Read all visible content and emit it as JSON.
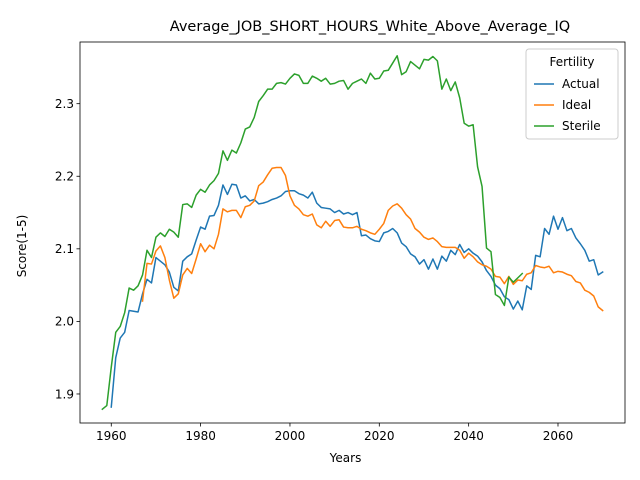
{
  "chart_data": {
    "type": "line",
    "title": "Average_JOB_SHORT_HOURS_White_Above_Average_IQ",
    "xlabel": "Years",
    "ylabel": "Score(1-5)",
    "xlim": [
      1953,
      2075
    ],
    "ylim": [
      1.86,
      2.385
    ],
    "x_ticks": [
      1960,
      1980,
      2000,
      2020,
      2040,
      2060
    ],
    "y_ticks": [
      1.9,
      2.0,
      2.1,
      2.2,
      2.3
    ],
    "x_tick_labels": [
      "1960",
      "1980",
      "2000",
      "2020",
      "2040",
      "2060"
    ],
    "y_tick_labels": [
      "1.9",
      "2.0",
      "2.1",
      "2.2",
      "2.3"
    ],
    "grid": false,
    "legend": {
      "title": "Fertility",
      "position": "top-right"
    },
    "series": [
      {
        "name": "Actual",
        "color": "#1f77b4",
        "x": [
          1960,
          1961,
          1962,
          1963,
          1964,
          1965,
          1966,
          1967,
          1968,
          1969,
          1970,
          1971,
          1972,
          1973,
          1974,
          1975,
          1976,
          1977,
          1978,
          1979,
          1980,
          1981,
          1982,
          1983,
          1984,
          1985,
          1986,
          1987,
          1988,
          1989,
          1990,
          1991,
          1992,
          1993,
          1994,
          1995,
          1996,
          1997,
          1998,
          1999,
          2000,
          2001,
          2002,
          2003,
          2004,
          2005,
          2006,
          2007,
          2008,
          2009,
          2010,
          2011,
          2012,
          2013,
          2014,
          2015,
          2016,
          2017,
          2018,
          2019,
          2020,
          2021,
          2022,
          2023,
          2024,
          2025,
          2026,
          2027,
          2028,
          2029,
          2030,
          2031,
          2032,
          2033,
          2034,
          2035,
          2036,
          2037,
          2038,
          2039,
          2040,
          2041,
          2042,
          2043,
          2044,
          2045,
          2046,
          2047,
          2048,
          2049,
          2050,
          2051,
          2052,
          2053,
          2054,
          2055,
          2056,
          2057,
          2058,
          2059,
          2060,
          2061,
          2062,
          2063,
          2064,
          2065,
          2066,
          2067,
          2068,
          2069,
          2070
        ],
        "values": [
          1.882,
          1.95,
          1.977,
          1.985,
          2.015,
          2.014,
          2.013,
          2.038,
          2.058,
          2.053,
          2.088,
          2.083,
          2.078,
          2.068,
          2.047,
          2.042,
          2.083,
          2.089,
          2.093,
          2.112,
          2.13,
          2.127,
          2.145,
          2.146,
          2.16,
          2.188,
          2.175,
          2.189,
          2.188,
          2.17,
          2.173,
          2.166,
          2.168,
          2.162,
          2.163,
          2.165,
          2.168,
          2.17,
          2.173,
          2.179,
          2.18,
          2.18,
          2.176,
          2.174,
          2.17,
          2.178,
          2.163,
          2.157,
          2.156,
          2.155,
          2.15,
          2.153,
          2.148,
          2.15,
          2.147,
          2.15,
          2.118,
          2.119,
          2.114,
          2.111,
          2.11,
          2.122,
          2.124,
          2.128,
          2.122,
          2.108,
          2.103,
          2.093,
          2.089,
          2.079,
          2.085,
          2.072,
          2.086,
          2.072,
          2.09,
          2.083,
          2.098,
          2.092,
          2.106,
          2.095,
          2.1,
          2.094,
          2.09,
          2.082,
          2.07,
          2.062,
          2.05,
          2.045,
          2.034,
          2.03,
          2.017,
          2.028,
          2.016,
          2.049,
          2.044,
          2.091,
          2.089,
          2.128,
          2.12,
          2.145,
          2.127,
          2.143,
          2.125,
          2.128,
          2.115,
          2.107,
          2.098,
          2.083,
          2.085,
          2.064,
          2.068
        ]
      },
      {
        "name": "Ideal",
        "color": "#ff7f0e",
        "x": [
          1967,
          1968,
          1969,
          1970,
          1971,
          1972,
          1973,
          1974,
          1975,
          1976,
          1977,
          1978,
          1979,
          1980,
          1981,
          1982,
          1983,
          1984,
          1985,
          1986,
          1987,
          1988,
          1989,
          1990,
          1991,
          1992,
          1993,
          1994,
          1995,
          1996,
          1997,
          1998,
          1999,
          2000,
          2001,
          2002,
          2003,
          2004,
          2005,
          2006,
          2007,
          2008,
          2009,
          2010,
          2011,
          2012,
          2013,
          2014,
          2015,
          2016,
          2017,
          2018,
          2019,
          2020,
          2021,
          2022,
          2023,
          2024,
          2025,
          2026,
          2027,
          2028,
          2029,
          2030,
          2031,
          2032,
          2033,
          2034,
          2035,
          2036,
          2037,
          2038,
          2039,
          2040,
          2041,
          2042,
          2043,
          2044,
          2045,
          2046,
          2047,
          2048,
          2049,
          2050,
          2051,
          2052,
          2053,
          2054,
          2055,
          2056,
          2057,
          2058,
          2059,
          2060,
          2061,
          2062,
          2063,
          2064,
          2065,
          2066,
          2067,
          2068,
          2069,
          2070
        ],
        "values": [
          2.028,
          2.08,
          2.079,
          2.097,
          2.104,
          2.088,
          2.057,
          2.032,
          2.038,
          2.064,
          2.073,
          2.066,
          2.086,
          2.107,
          2.096,
          2.105,
          2.1,
          2.12,
          2.155,
          2.151,
          2.153,
          2.153,
          2.143,
          2.158,
          2.16,
          2.166,
          2.187,
          2.192,
          2.202,
          2.211,
          2.212,
          2.212,
          2.201,
          2.173,
          2.16,
          2.155,
          2.147,
          2.145,
          2.148,
          2.133,
          2.129,
          2.138,
          2.131,
          2.139,
          2.14,
          2.13,
          2.129,
          2.129,
          2.131,
          2.127,
          2.125,
          2.122,
          2.12,
          2.127,
          2.135,
          2.153,
          2.159,
          2.162,
          2.156,
          2.147,
          2.141,
          2.128,
          2.123,
          2.116,
          2.113,
          2.115,
          2.11,
          2.103,
          2.102,
          2.102,
          2.102,
          2.098,
          2.087,
          2.094,
          2.089,
          2.082,
          2.078,
          2.076,
          2.072,
          2.062,
          2.061,
          2.052,
          2.062,
          2.051,
          2.057,
          2.056,
          2.065,
          2.067,
          2.077,
          2.075,
          2.074,
          2.076,
          2.067,
          2.069,
          2.068,
          2.065,
          2.063,
          2.055,
          2.053,
          2.043,
          2.04,
          2.035,
          2.02,
          2.015
        ]
      },
      {
        "name": "Sterile",
        "color": "#2ca02c",
        "x": [
          1958,
          1959,
          1960,
          1961,
          1962,
          1963,
          1964,
          1965,
          1966,
          1967,
          1968,
          1969,
          1970,
          1971,
          1972,
          1973,
          1974,
          1975,
          1976,
          1977,
          1978,
          1979,
          1980,
          1981,
          1982,
          1983,
          1984,
          1985,
          1986,
          1987,
          1988,
          1989,
          1990,
          1991,
          1992,
          1993,
          1994,
          1995,
          1996,
          1997,
          1998,
          1999,
          2000,
          2001,
          2002,
          2003,
          2004,
          2005,
          2006,
          2007,
          2008,
          2009,
          2010,
          2011,
          2012,
          2013,
          2014,
          2015,
          2016,
          2017,
          2018,
          2019,
          2020,
          2021,
          2022,
          2023,
          2024,
          2025,
          2026,
          2027,
          2028,
          2029,
          2030,
          2031,
          2032,
          2033,
          2034,
          2035,
          2036,
          2037,
          2038,
          2039,
          2040,
          2041,
          2042,
          2043,
          2044,
          2045,
          2046,
          2047,
          2048,
          2049,
          2050,
          2051,
          2052
        ],
        "values": [
          1.879,
          1.884,
          1.937,
          1.985,
          1.993,
          2.012,
          2.046,
          2.043,
          2.049,
          2.064,
          2.098,
          2.088,
          2.116,
          2.122,
          2.117,
          2.127,
          2.123,
          2.116,
          2.161,
          2.162,
          2.157,
          2.174,
          2.182,
          2.178,
          2.188,
          2.194,
          2.204,
          2.235,
          2.222,
          2.236,
          2.232,
          2.246,
          2.265,
          2.268,
          2.281,
          2.303,
          2.311,
          2.32,
          2.32,
          2.328,
          2.329,
          2.327,
          2.335,
          2.341,
          2.339,
          2.328,
          2.328,
          2.338,
          2.335,
          2.331,
          2.335,
          2.327,
          2.328,
          2.331,
          2.332,
          2.32,
          2.328,
          2.331,
          2.334,
          2.328,
          2.342,
          2.334,
          2.335,
          2.345,
          2.346,
          2.356,
          2.366,
          2.34,
          2.344,
          2.358,
          2.353,
          2.348,
          2.361,
          2.36,
          2.365,
          2.359,
          2.32,
          2.334,
          2.318,
          2.33,
          2.308,
          2.273,
          2.269,
          2.271,
          2.213,
          2.186,
          2.101,
          2.096,
          2.037,
          2.033,
          2.022,
          2.061,
          2.054,
          2.06,
          2.066
        ]
      }
    ]
  }
}
